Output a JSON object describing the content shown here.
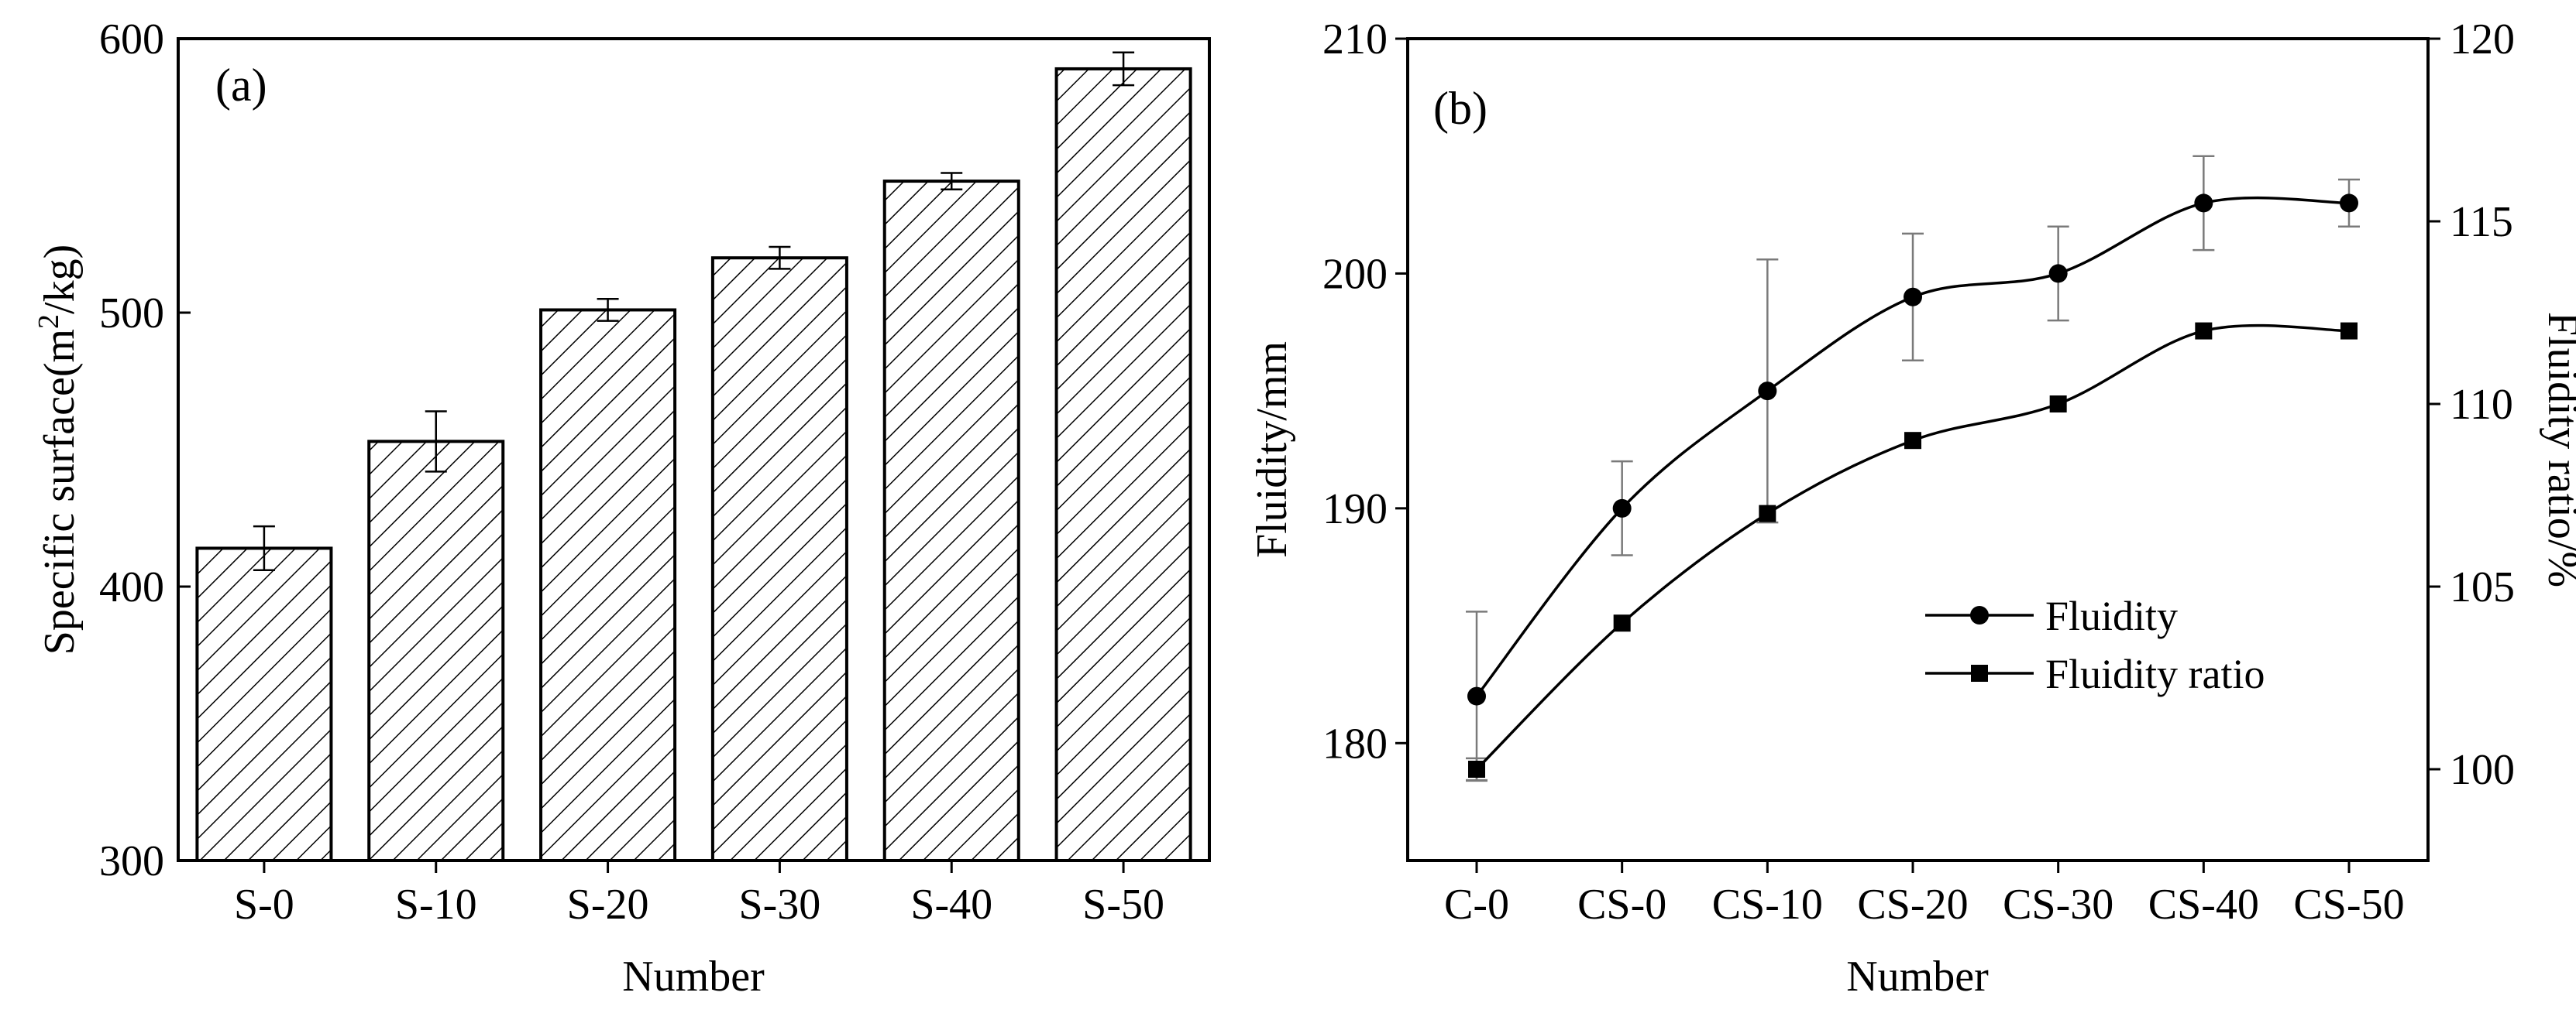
{
  "chart_data": [
    {
      "type": "bar",
      "panel_label": "(a)",
      "categories": [
        "S-0",
        "S-10",
        "S-20",
        "S-30",
        "S-40",
        "S-50"
      ],
      "values": [
        414,
        453,
        501,
        520,
        548,
        589
      ],
      "errors": [
        8,
        11,
        4,
        4,
        3,
        6
      ],
      "xlabel": "Number",
      "ylabel_main": "Specific surface(m",
      "ylabel_sup": "2",
      "ylabel_tail": "/kg)",
      "ylim": [
        300,
        600
      ],
      "yticks": [
        300,
        400,
        500,
        600
      ],
      "ytick_labels": [
        "300",
        "400",
        "500",
        "600"
      ],
      "grid": false
    },
    {
      "type": "line",
      "panel_label": "(b)",
      "categories": [
        "C-0",
        "CS-0",
        "CS-10",
        "CS-20",
        "CS-30",
        "CS-40",
        "CS-50"
      ],
      "xlabel": "Number",
      "ylabel_left": "Fluidity/mm",
      "ylabel_right": "Fluidity ratio/%",
      "ylim_left": [
        175,
        210
      ],
      "ylim_right": [
        97.5,
        120
      ],
      "yticks_left": [
        180,
        190,
        200,
        210
      ],
      "ytick_labels_left": [
        "180",
        "190",
        "200",
        "210"
      ],
      "yticks_right": [
        100,
        105,
        110,
        115,
        120
      ],
      "ytick_labels_right": [
        "100",
        "105",
        "110",
        "115",
        "120"
      ],
      "legend_position": "center-right",
      "grid": false,
      "series": [
        {
          "name": "Fluidity",
          "axis": "left",
          "marker": "circle",
          "values": [
            182,
            190,
            195,
            199,
            200,
            203,
            203
          ],
          "errors": [
            3.6,
            2,
            5.6,
            2.7,
            2,
            2,
            1
          ]
        },
        {
          "name": "Fluidity ratio",
          "axis": "right",
          "marker": "square",
          "values": [
            100,
            104,
            107,
            109,
            110,
            112,
            112
          ],
          "errors": [
            0.3,
            0,
            0,
            0,
            0,
            0,
            0
          ]
        }
      ]
    }
  ]
}
